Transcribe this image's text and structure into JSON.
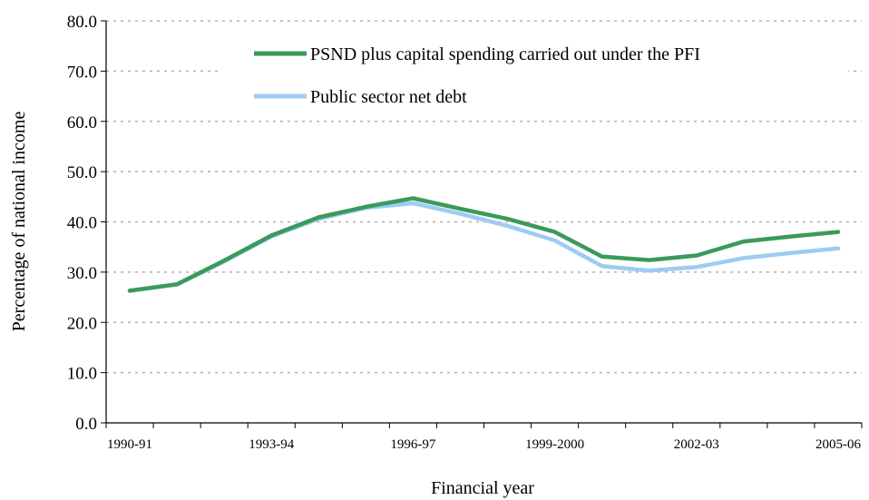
{
  "chart_data": {
    "type": "line",
    "title": "",
    "xlabel": "Financial year",
    "ylabel": "Percentage of national income",
    "ylim": [
      0,
      80
    ],
    "y_ticks": [
      "0.0",
      "10.0",
      "20.0",
      "30.0",
      "40.0",
      "50.0",
      "60.0",
      "70.0",
      "80.0"
    ],
    "x_tick_labels": [
      "1990-91",
      "1993-94",
      "1996-97",
      "1999-2000",
      "2002-03",
      "2005-06"
    ],
    "x": [
      "1990-91",
      "1991-92",
      "1992-93",
      "1993-94",
      "1994-95",
      "1995-96",
      "1996-97",
      "1997-98",
      "1998-99",
      "1999-2000",
      "2000-01",
      "2001-02",
      "2002-03",
      "2003-04",
      "2004-05",
      "2005-06"
    ],
    "grid": true,
    "legend_position": "top-right",
    "series": [
      {
        "name": "PSND plus capital spending carried out under the PFI",
        "color": "#3a9a5b",
        "values": [
          26.3,
          27.6,
          32.3,
          37.3,
          40.9,
          43.0,
          44.7,
          42.6,
          40.6,
          38.0,
          33.1,
          32.4,
          33.3,
          36.1,
          37.1,
          38.0
        ]
      },
      {
        "name": "Public sector net debt",
        "color": "#9ecbf2",
        "values": [
          26.3,
          27.5,
          32.1,
          37.1,
          40.6,
          42.8,
          43.7,
          41.6,
          39.2,
          36.3,
          31.2,
          30.3,
          31.0,
          32.8,
          33.8,
          34.7
        ]
      }
    ]
  }
}
